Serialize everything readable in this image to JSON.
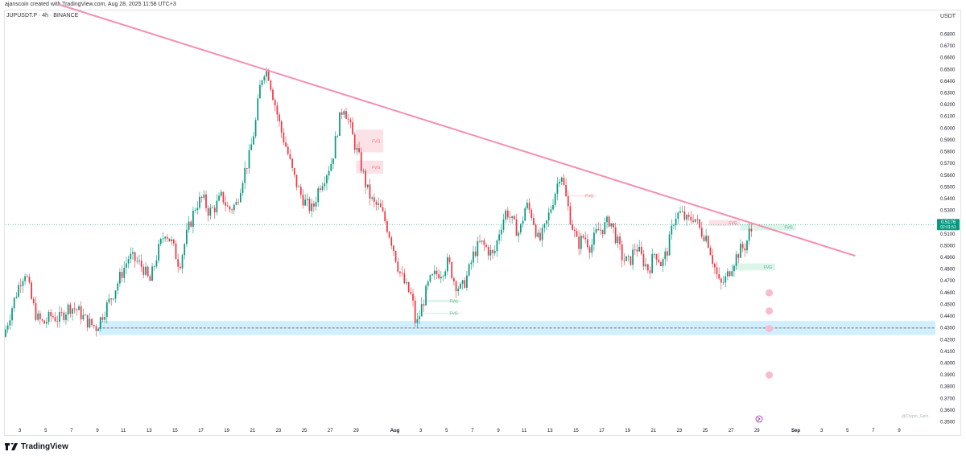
{
  "header": {
    "credit": "ajanscoin created with TradingView.com, Aug 28, 2025 11:58 UTC+3",
    "symbol": "JUPUSDT.P · 4h · BINANCE",
    "currency": "USDT"
  },
  "footer": {
    "brand": "TradingView",
    "watermark": "@Crypto_Gem"
  },
  "colors": {
    "up": "#089981",
    "down": "#f23645",
    "trendline": "#f48fb1",
    "support_zone": "#b3e5fc",
    "fvg_bear": "#fcdde3",
    "fvg_bull": "#d7f2e4",
    "label_bg": "#089981",
    "target_dot": "#f8bbd0"
  },
  "price_label": {
    "price": "0.5176",
    "countdown": "02:01:51"
  },
  "chart_data": {
    "type": "candlestick",
    "title": "JUPUSDT.P · 4h · BINANCE",
    "ylabel": "USDT",
    "ylim": [
      0.345,
      0.685
    ],
    "y_ticks": [
      "0.6800",
      "0.6700",
      "0.6600",
      "0.6500",
      "0.6400",
      "0.6300",
      "0.6200",
      "0.6100",
      "0.6000",
      "0.5900",
      "0.5800",
      "0.5700",
      "0.5600",
      "0.5500",
      "0.5400",
      "0.5300",
      "0.5200",
      "0.5100",
      "0.5000",
      "0.4900",
      "0.4800",
      "0.4700",
      "0.4600",
      "0.4500",
      "0.4400",
      "0.4300",
      "0.4200",
      "0.4100",
      "0.4000",
      "0.3900",
      "0.3800",
      "0.3700",
      "0.3600",
      "0.3500"
    ],
    "x_ticks": [
      {
        "day": 3,
        "label": "3"
      },
      {
        "day": 5,
        "label": "5"
      },
      {
        "day": 7,
        "label": "7"
      },
      {
        "day": 9,
        "label": "9"
      },
      {
        "day": 11,
        "label": "11"
      },
      {
        "day": 13,
        "label": "13"
      },
      {
        "day": 15,
        "label": "15"
      },
      {
        "day": 17,
        "label": "17"
      },
      {
        "day": 19,
        "label": "19"
      },
      {
        "day": 21,
        "label": "21"
      },
      {
        "day": 23,
        "label": "23"
      },
      {
        "day": 25,
        "label": "25"
      },
      {
        "day": 27,
        "label": "27"
      },
      {
        "day": 29,
        "label": "29"
      },
      {
        "day": 32,
        "label": "Aug"
      },
      {
        "day": 34,
        "label": "3"
      },
      {
        "day": 36,
        "label": "5"
      },
      {
        "day": 38,
        "label": "7"
      },
      {
        "day": 40,
        "label": "9"
      },
      {
        "day": 42,
        "label": "11"
      },
      {
        "day": 44,
        "label": "13"
      },
      {
        "day": 46,
        "label": "15"
      },
      {
        "day": 48,
        "label": "17"
      },
      {
        "day": 50,
        "label": "19"
      },
      {
        "day": 52,
        "label": "21"
      },
      {
        "day": 54,
        "label": "23"
      },
      {
        "day": 56,
        "label": "25"
      },
      {
        "day": 58,
        "label": "27"
      },
      {
        "day": 60,
        "label": "29"
      },
      {
        "day": 63,
        "label": "Sep"
      },
      {
        "day": 65,
        "label": "3"
      },
      {
        "day": 67,
        "label": "5"
      },
      {
        "day": 69,
        "label": "7"
      },
      {
        "day": 71,
        "label": "9"
      }
    ],
    "xlim": [
      1.9,
      73.8
    ],
    "path": [
      [
        1.9,
        0.422
      ],
      [
        2.5,
        0.445
      ],
      [
        3.2,
        0.47
      ],
      [
        3.6,
        0.478
      ],
      [
        4.1,
        0.452
      ],
      [
        4.5,
        0.438
      ],
      [
        5.0,
        0.433
      ],
      [
        5.6,
        0.44
      ],
      [
        6.2,
        0.437
      ],
      [
        7.0,
        0.448
      ],
      [
        7.6,
        0.445
      ],
      [
        8.2,
        0.437
      ],
      [
        8.6,
        0.433
      ],
      [
        9.1,
        0.43
      ],
      [
        9.6,
        0.442
      ],
      [
        10.3,
        0.457
      ],
      [
        11.0,
        0.475
      ],
      [
        11.6,
        0.49
      ],
      [
        12.1,
        0.487
      ],
      [
        12.7,
        0.481
      ],
      [
        13.2,
        0.468
      ],
      [
        13.8,
        0.493
      ],
      [
        14.4,
        0.512
      ],
      [
        14.9,
        0.502
      ],
      [
        15.5,
        0.483
      ],
      [
        16.1,
        0.51
      ],
      [
        16.8,
        0.535
      ],
      [
        17.3,
        0.54
      ],
      [
        17.8,
        0.528
      ],
      [
        18.3,
        0.533
      ],
      [
        18.8,
        0.542
      ],
      [
        19.3,
        0.53
      ],
      [
        19.9,
        0.535
      ],
      [
        20.4,
        0.558
      ],
      [
        20.9,
        0.575
      ],
      [
        21.4,
        0.605
      ],
      [
        21.8,
        0.64
      ],
      [
        22.1,
        0.65
      ],
      [
        22.4,
        0.645
      ],
      [
        22.8,
        0.625
      ],
      [
        23.3,
        0.6
      ],
      [
        23.8,
        0.582
      ],
      [
        24.3,
        0.56
      ],
      [
        24.8,
        0.545
      ],
      [
        25.3,
        0.535
      ],
      [
        25.8,
        0.53
      ],
      [
        26.3,
        0.55
      ],
      [
        26.8,
        0.56
      ],
      [
        27.3,
        0.572
      ],
      [
        27.8,
        0.603
      ],
      [
        28.2,
        0.62
      ],
      [
        28.6,
        0.605
      ],
      [
        29.0,
        0.588
      ],
      [
        29.5,
        0.57
      ],
      [
        30.0,
        0.548
      ],
      [
        30.5,
        0.535
      ],
      [
        31.0,
        0.532
      ],
      [
        31.5,
        0.518
      ],
      [
        32.0,
        0.5
      ],
      [
        32.5,
        0.478
      ],
      [
        33.0,
        0.465
      ],
      [
        33.5,
        0.455
      ],
      [
        33.8,
        0.43
      ],
      [
        34.3,
        0.45
      ],
      [
        34.8,
        0.468
      ],
      [
        35.3,
        0.475
      ],
      [
        35.8,
        0.478
      ],
      [
        36.3,
        0.486
      ],
      [
        36.8,
        0.468
      ],
      [
        37.3,
        0.462
      ],
      [
        37.8,
        0.475
      ],
      [
        38.3,
        0.494
      ],
      [
        38.8,
        0.502
      ],
      [
        39.3,
        0.497
      ],
      [
        39.8,
        0.49
      ],
      [
        40.3,
        0.515
      ],
      [
        40.8,
        0.53
      ],
      [
        41.3,
        0.518
      ],
      [
        41.8,
        0.51
      ],
      [
        42.3,
        0.535
      ],
      [
        42.8,
        0.525
      ],
      [
        43.3,
        0.502
      ],
      [
        43.8,
        0.515
      ],
      [
        44.3,
        0.535
      ],
      [
        44.8,
        0.555
      ],
      [
        45.0,
        0.565
      ],
      [
        45.3,
        0.545
      ],
      [
        45.8,
        0.52
      ],
      [
        46.3,
        0.5
      ],
      [
        46.8,
        0.508
      ],
      [
        47.3,
        0.498
      ],
      [
        47.8,
        0.512
      ],
      [
        48.3,
        0.515
      ],
      [
        48.8,
        0.522
      ],
      [
        49.3,
        0.505
      ],
      [
        49.8,
        0.488
      ],
      [
        50.3,
        0.485
      ],
      [
        50.8,
        0.5
      ],
      [
        51.3,
        0.488
      ],
      [
        51.8,
        0.479
      ],
      [
        52.3,
        0.495
      ],
      [
        52.8,
        0.483
      ],
      [
        53.3,
        0.498
      ],
      [
        53.8,
        0.525
      ],
      [
        54.3,
        0.527
      ],
      [
        54.8,
        0.52
      ],
      [
        55.3,
        0.525
      ],
      [
        55.8,
        0.512
      ],
      [
        56.3,
        0.507
      ],
      [
        56.8,
        0.485
      ],
      [
        57.3,
        0.465
      ],
      [
        57.8,
        0.472
      ],
      [
        58.3,
        0.485
      ],
      [
        58.8,
        0.495
      ],
      [
        59.3,
        0.5
      ],
      [
        59.6,
        0.512
      ]
    ],
    "trendline": {
      "from": {
        "day": 6.0,
        "price": 0.705
      },
      "to": {
        "day": 67.6,
        "price": 0.491
      }
    },
    "support_zone": {
      "from_day": 9.1,
      "to_day": 73.8,
      "top": 0.4355,
      "bottom": 0.4235,
      "level": 0.4295
    },
    "current_price": 0.5176,
    "fvg": [
      {
        "label": "FVG",
        "kind": "bear",
        "from_day": 29.0,
        "to_day": 31.1,
        "top": 0.5985,
        "bottom": 0.579
      },
      {
        "label": "FVG",
        "kind": "bear",
        "from_day": 29.0,
        "to_day": 31.1,
        "top": 0.572,
        "bottom": 0.561
      },
      {
        "label": "FVG",
        "kind": "bear",
        "from_day": 45.3,
        "to_day": 47.6,
        "top": 0.5425,
        "bottom": 0.5415
      },
      {
        "label": "FVG",
        "kind": "bear",
        "from_day": 56.3,
        "to_day": 58.7,
        "top": 0.5215,
        "bottom": 0.5165
      },
      {
        "label": "FVG",
        "kind": "bull",
        "from_day": 58.7,
        "to_day": 63.0,
        "top": 0.518,
        "bottom": 0.5125
      },
      {
        "label": "FVG",
        "kind": "bull",
        "from_day": 58.1,
        "to_day": 61.4,
        "top": 0.4845,
        "bottom": 0.4785
      },
      {
        "label": "FVG",
        "kind": "bull",
        "from_day": 34.3,
        "to_day": 37.1,
        "top": 0.4535,
        "bottom": 0.4515
      },
      {
        "label": "FVG",
        "kind": "bull",
        "from_day": 34.3,
        "to_day": 37.1,
        "top": 0.4425,
        "bottom": 0.4415
      }
    ],
    "target_levels": [
      0.4595,
      0.444,
      0.429,
      0.3895
    ],
    "target_day": 60.95
  }
}
